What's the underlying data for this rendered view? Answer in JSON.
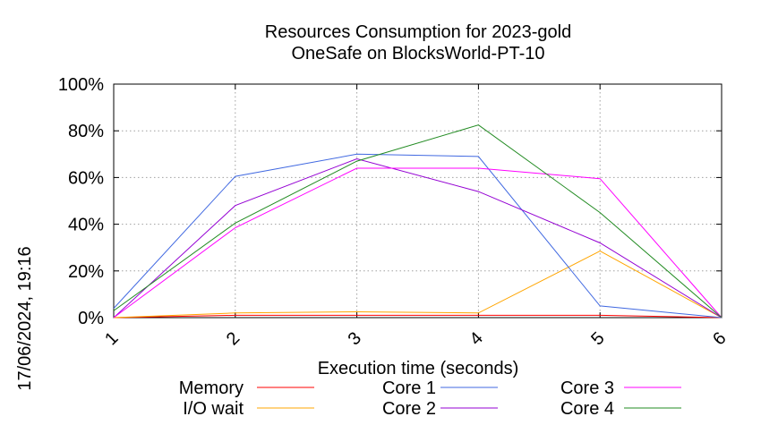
{
  "chart_data": {
    "type": "line",
    "title": "Resources Consumption for 2023-gold",
    "subtitle": "OneSafe on BlocksWorld-PT-10",
    "xlabel": "Execution time (seconds)",
    "ylabel": "",
    "timestamp": "17/06/2024, 19:16",
    "x": [
      1,
      2,
      3,
      4,
      5,
      6
    ],
    "x_ticks": [
      "1",
      "2",
      "3",
      "4",
      "5",
      "6"
    ],
    "xlim": [
      1,
      6
    ],
    "ylim": [
      0,
      100
    ],
    "y_ticks": [
      "0%",
      "20%",
      "40%",
      "60%",
      "80%",
      "100%"
    ],
    "grid": true,
    "legend_position": "bottom",
    "series": [
      {
        "name": "Memory",
        "color": "#ff0000",
        "values": [
          0,
          1,
          1,
          1,
          1,
          0
        ]
      },
      {
        "name": "I/O wait",
        "color": "#ffa500",
        "values": [
          0,
          2,
          2.5,
          2,
          28.5,
          0
        ]
      },
      {
        "name": "Core 1",
        "color": "#4169e1",
        "values": [
          4,
          60.5,
          70,
          69,
          5,
          0
        ]
      },
      {
        "name": "Core 2",
        "color": "#9400d3",
        "values": [
          0,
          48,
          68,
          54,
          32,
          0
        ]
      },
      {
        "name": "Core 3",
        "color": "#ff00ff",
        "values": [
          0,
          38.5,
          64,
          64,
          59.5,
          0
        ]
      },
      {
        "name": "Core 4",
        "color": "#228b22",
        "values": [
          3,
          40.5,
          67,
          82.5,
          45,
          0
        ]
      }
    ]
  }
}
